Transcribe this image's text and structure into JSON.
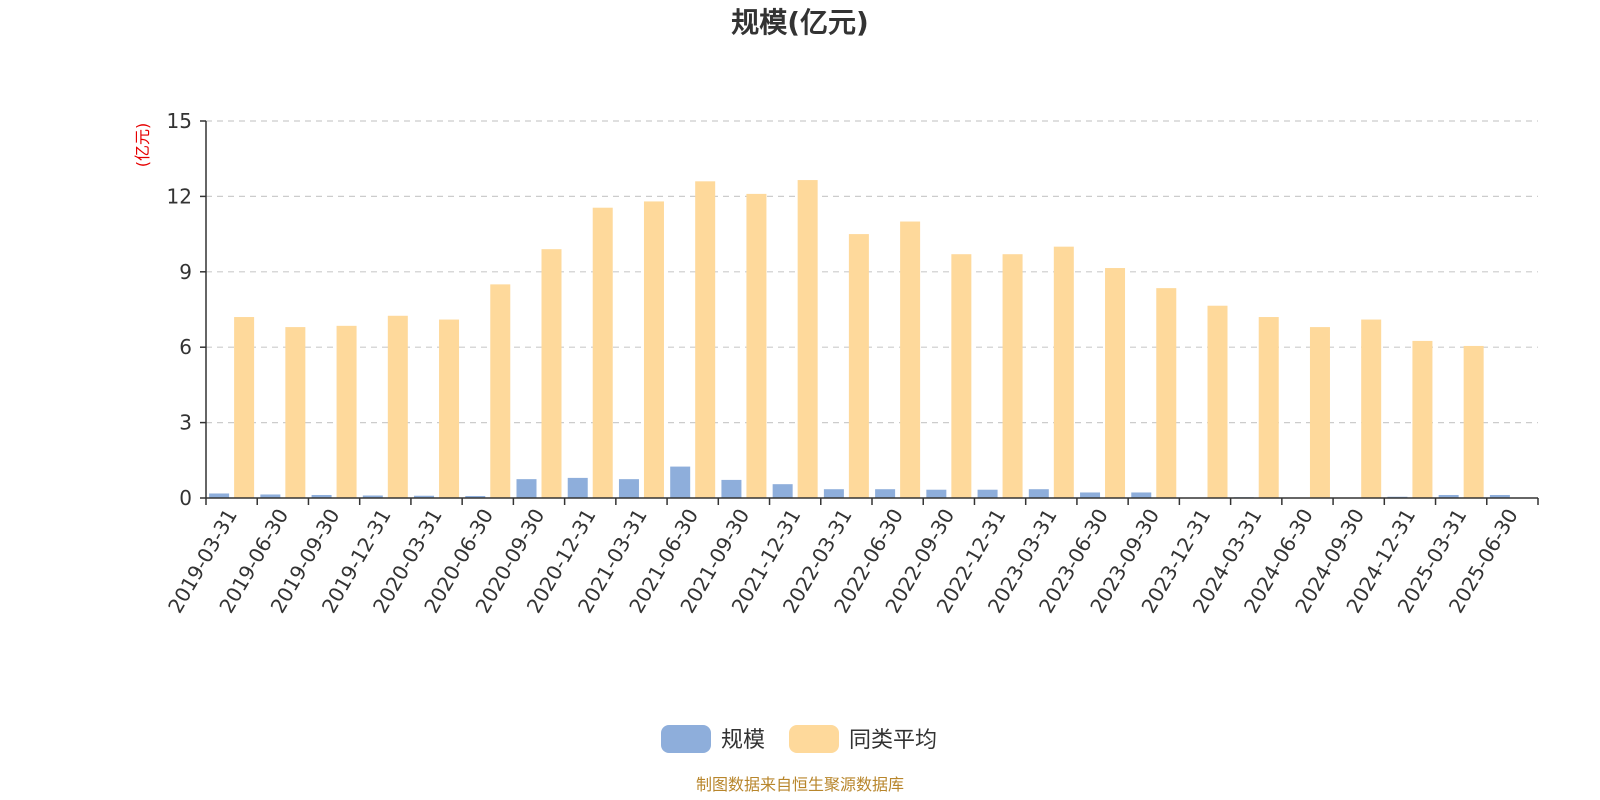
{
  "chart_data": {
    "type": "bar",
    "title": "规模(亿元)",
    "ylabel": "(亿元)",
    "xlabel": "",
    "ylim": [
      0,
      15
    ],
    "yticks": [
      0,
      3,
      6,
      9,
      12,
      15
    ],
    "grid": true,
    "legend_position": "bottom-center",
    "categories": [
      "2019-03-31",
      "2019-06-30",
      "2019-09-30",
      "2019-12-31",
      "2020-03-31",
      "2020-06-30",
      "2020-09-30",
      "2020-12-31",
      "2021-03-31",
      "2021-06-30",
      "2021-09-30",
      "2021-12-31",
      "2022-03-31",
      "2022-06-30",
      "2022-09-30",
      "2022-12-31",
      "2023-03-31",
      "2023-06-30",
      "2023-09-30",
      "2023-12-31",
      "2024-03-31",
      "2024-06-30",
      "2024-09-30",
      "2024-12-31",
      "2025-03-31",
      "2025-06-30"
    ],
    "series": [
      {
        "name": "规模",
        "color": "#8eaedb",
        "values": [
          0.18,
          0.14,
          0.12,
          0.1,
          0.09,
          0.08,
          0.75,
          0.8,
          0.75,
          1.25,
          0.72,
          0.55,
          0.35,
          0.35,
          0.33,
          0.33,
          0.35,
          0.22,
          0.22,
          0.02,
          0.03,
          0.02,
          0.02,
          0.05,
          0.12,
          0.12
        ]
      },
      {
        "name": "同类平均",
        "color": "#fed99b",
        "values": [
          7.2,
          6.8,
          6.85,
          7.25,
          7.1,
          8.5,
          9.9,
          11.55,
          11.8,
          12.6,
          12.1,
          12.65,
          10.5,
          11.0,
          9.7,
          9.7,
          10.0,
          9.15,
          8.35,
          7.65,
          7.2,
          6.8,
          7.1,
          6.25,
          6.05,
          null
        ]
      }
    ],
    "unit_color": "#e60000"
  },
  "footer": {
    "source": "制图数据来自恒生聚源数据库",
    "source_color": "#b8862c"
  }
}
